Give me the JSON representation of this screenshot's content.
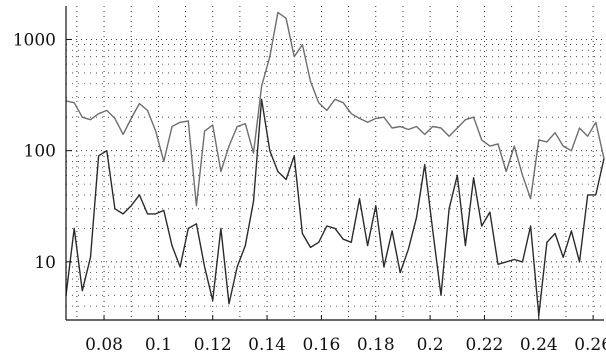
{
  "chart_data": {
    "type": "line",
    "title": "",
    "xlabel": "",
    "ylabel": "",
    "yscale": "log",
    "xlim": [
      0.066,
      0.264
    ],
    "ylim": [
      3,
      2000
    ],
    "grid": true,
    "x_ticks": [
      0.08,
      0.1,
      0.12,
      0.14,
      0.16,
      0.18,
      0.2,
      0.22,
      0.24,
      0.26
    ],
    "x_tick_labels": [
      "0.08",
      "0.1",
      "0.12",
      "0.14",
      "0.16",
      "0.18",
      "0.2",
      "0.22",
      "0.24",
      "0.26"
    ],
    "y_ticks": [
      10,
      100,
      1000
    ],
    "y_tick_labels": [
      "10",
      "100",
      "1000"
    ],
    "series": [
      {
        "color": "#6e6e6e",
        "x": [
          0.066,
          0.069,
          0.072,
          0.075,
          0.078,
          0.081,
          0.084,
          0.087,
          0.09,
          0.093,
          0.096,
          0.099,
          0.102,
          0.105,
          0.108,
          0.111,
          0.114,
          0.117,
          0.12,
          0.123,
          0.126,
          0.129,
          0.132,
          0.135,
          0.138,
          0.141,
          0.144,
          0.147,
          0.15,
          0.153,
          0.156,
          0.159,
          0.162,
          0.165,
          0.168,
          0.171,
          0.174,
          0.177,
          0.18,
          0.183,
          0.186,
          0.189,
          0.192,
          0.195,
          0.198,
          0.201,
          0.204,
          0.207,
          0.21,
          0.213,
          0.216,
          0.219,
          0.222,
          0.225,
          0.228,
          0.231,
          0.234,
          0.237,
          0.24,
          0.243,
          0.246,
          0.249,
          0.252,
          0.255,
          0.258,
          0.261,
          0.264
        ],
        "y": [
          280,
          270,
          200,
          190,
          215,
          230,
          195,
          140,
          195,
          265,
          230,
          150,
          80,
          165,
          180,
          185,
          32,
          150,
          170,
          65,
          110,
          165,
          175,
          95,
          380,
          700,
          1750,
          1550,
          700,
          900,
          420,
          270,
          230,
          290,
          270,
          215,
          195,
          180,
          195,
          200,
          160,
          165,
          155,
          165,
          140,
          165,
          160,
          135,
          160,
          190,
          200,
          125,
          110,
          115,
          65,
          110,
          60,
          37,
          125,
          120,
          145,
          110,
          100,
          160,
          135,
          180,
          85
        ]
      },
      {
        "color": "#2b2b2b",
        "x": [
          0.066,
          0.069,
          0.072,
          0.075,
          0.078,
          0.081,
          0.084,
          0.087,
          0.09,
          0.093,
          0.096,
          0.099,
          0.102,
          0.105,
          0.108,
          0.111,
          0.114,
          0.117,
          0.12,
          0.123,
          0.126,
          0.129,
          0.132,
          0.135,
          0.138,
          0.141,
          0.144,
          0.147,
          0.15,
          0.153,
          0.156,
          0.159,
          0.162,
          0.165,
          0.168,
          0.171,
          0.174,
          0.177,
          0.18,
          0.183,
          0.186,
          0.189,
          0.192,
          0.195,
          0.198,
          0.201,
          0.204,
          0.207,
          0.21,
          0.213,
          0.216,
          0.219,
          0.222,
          0.225,
          0.228,
          0.231,
          0.234,
          0.237,
          0.24,
          0.243,
          0.246,
          0.249,
          0.252,
          0.255,
          0.258,
          0.261,
          0.264
        ],
        "y": [
          5,
          20,
          5.5,
          11,
          90,
          100,
          30,
          27,
          32,
          40,
          27,
          27,
          29,
          14,
          9,
          20,
          22,
          9,
          4.5,
          20,
          4.2,
          9,
          14,
          35,
          290,
          100,
          65,
          55,
          90,
          18,
          13.5,
          15,
          21,
          20,
          16,
          15,
          37,
          14,
          32,
          9,
          19,
          8,
          13,
          25,
          75,
          19,
          5,
          30,
          60,
          14,
          57,
          21,
          28,
          9.5,
          10,
          10.5,
          10,
          21,
          3.3,
          15,
          18,
          11,
          19,
          10,
          40,
          40,
          85
        ]
      }
    ]
  }
}
